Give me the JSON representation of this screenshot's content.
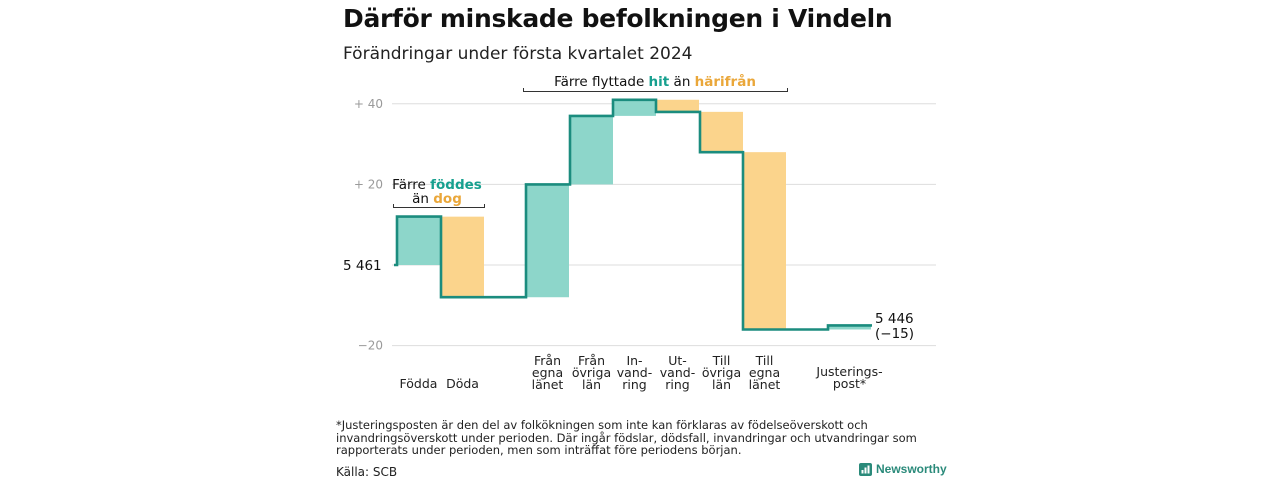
{
  "header": {
    "title": "Därför minskade befolkningen i Vindeln",
    "subtitle": "Förändringar under första kvartalet 2024"
  },
  "colors": {
    "positive": "#8dd6ca",
    "negative": "#fbd48c",
    "line": "#1b8c7e",
    "teal_text": "#17a08f",
    "orange_text": "#eaa73a",
    "grid": "#dddddd",
    "tick": "#9a9a9a"
  },
  "chart_data": {
    "type": "waterfall",
    "start": 5461,
    "start_label": "5 461",
    "end": 5446,
    "end_label": "5 446",
    "end_change_label": "(−15)",
    "steps": [
      {
        "label_lines": [
          "Födda"
        ],
        "value": 12
      },
      {
        "label_lines": [
          "Döda"
        ],
        "value": -20
      },
      {
        "label_lines": [
          "Från",
          "egna",
          "länet"
        ],
        "value": 28
      },
      {
        "label_lines": [
          "Från",
          "övriga",
          "län"
        ],
        "value": 17
      },
      {
        "label_lines": [
          "In-",
          "vand-",
          "ring"
        ],
        "value": 4
      },
      {
        "label_lines": [
          "Ut-",
          "vand-",
          "ring"
        ],
        "value": -3
      },
      {
        "label_lines": [
          "Till",
          "övriga",
          "län"
        ],
        "value": -10
      },
      {
        "label_lines": [
          "Till",
          "egna",
          "länet"
        ],
        "value": -44
      },
      {
        "label_lines": [
          "Justerings-",
          "post*"
        ],
        "value": 1
      }
    ],
    "y_ticks": [
      {
        "value": 40,
        "label": "+ 40"
      },
      {
        "value": 20,
        "label": "+ 20"
      },
      {
        "value": -20,
        "label": "−20"
      }
    ],
    "ylim": [
      -20,
      40
    ],
    "grid": true,
    "annotations": {
      "births_line1_prefix": "Färre ",
      "births_line1_highlight": "föddes",
      "births_line2_prefix": "än ",
      "births_line2_highlight": "dog",
      "moves_prefix": "Färre flyttade ",
      "moves_highlight1": "hit",
      "moves_mid": " än ",
      "moves_highlight2": "härifrån"
    }
  },
  "footer": {
    "footnote": "*Justeringsposten är den del av folkökningen som inte kan förklaras av födelseöverskott och invandringsöverskott under perioden. Där ingår födslar, dödsfall, invandringar och utvandringar som rapporterats under perioden, men som inträffat före periodens början.",
    "source": "Källa: SCB",
    "brand": "Newsworthy"
  }
}
